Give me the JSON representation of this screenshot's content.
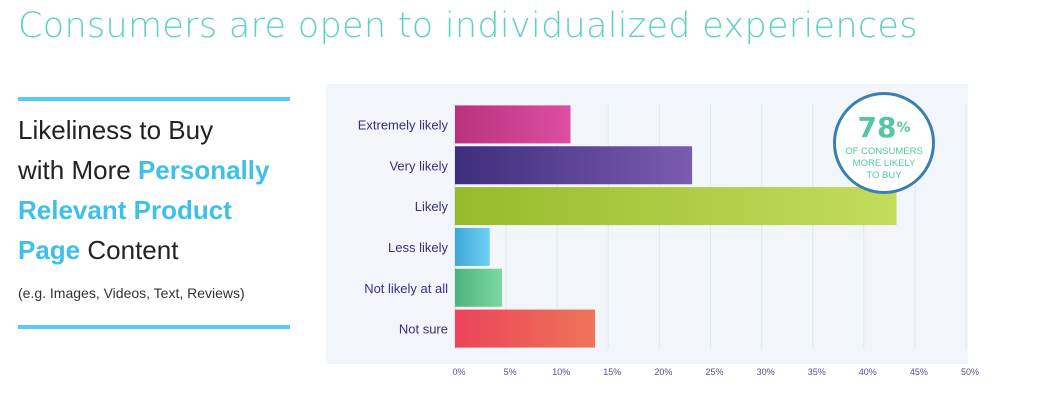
{
  "page": {
    "title": "Consumers are open to individualized experiences"
  },
  "sidebar": {
    "line1": "Likeliness to Buy",
    "line2_plain": "with More",
    "line2_highlight": "Personally",
    "line3_highlight": "Relevant Product",
    "line4_highlight": "Page",
    "line4_plain": "Content",
    "note": "(e.g. Images, Videos, Text, Reviews)"
  },
  "badge": {
    "value": "78",
    "unit": "%",
    "label": "OF CONSUMERS\nMORE LIKELY\nTO BUY"
  },
  "colors": {
    "title": "#5fd0c3",
    "accent_rule": "#5cc9ef",
    "highlight_text": "#3fc0ea",
    "category_label": "#3d2e7c",
    "tick_label": "#5a4a9c",
    "plot_bg": "#f2f5fa",
    "badge_ring": "#3a7fb2",
    "badge_text": "#55c6a2"
  },
  "chart_data": {
    "type": "bar",
    "orientation": "horizontal",
    "categories": [
      "Extremely likely",
      "Very likely",
      "Likely",
      "Less likely",
      "Not likely at all",
      "Not sure"
    ],
    "values": [
      11.3,
      23.2,
      43.2,
      3.4,
      4.6,
      13.7
    ],
    "bar_colors": [
      [
        "#b8327c",
        "#de4ea3"
      ],
      [
        "#3d2e7c",
        "#7b5bb0"
      ],
      [
        "#95bb2d",
        "#c4dc5c"
      ],
      [
        "#3fa8da",
        "#6fd0f2"
      ],
      [
        "#4db37c",
        "#7ed7a1"
      ],
      [
        "#ec4459",
        "#ee7458"
      ]
    ],
    "xlim": [
      0,
      50
    ],
    "xticks": [
      0,
      5,
      10,
      15,
      20,
      25,
      30,
      35,
      40,
      45,
      50
    ],
    "tick_suffix": "%",
    "grid": true
  }
}
